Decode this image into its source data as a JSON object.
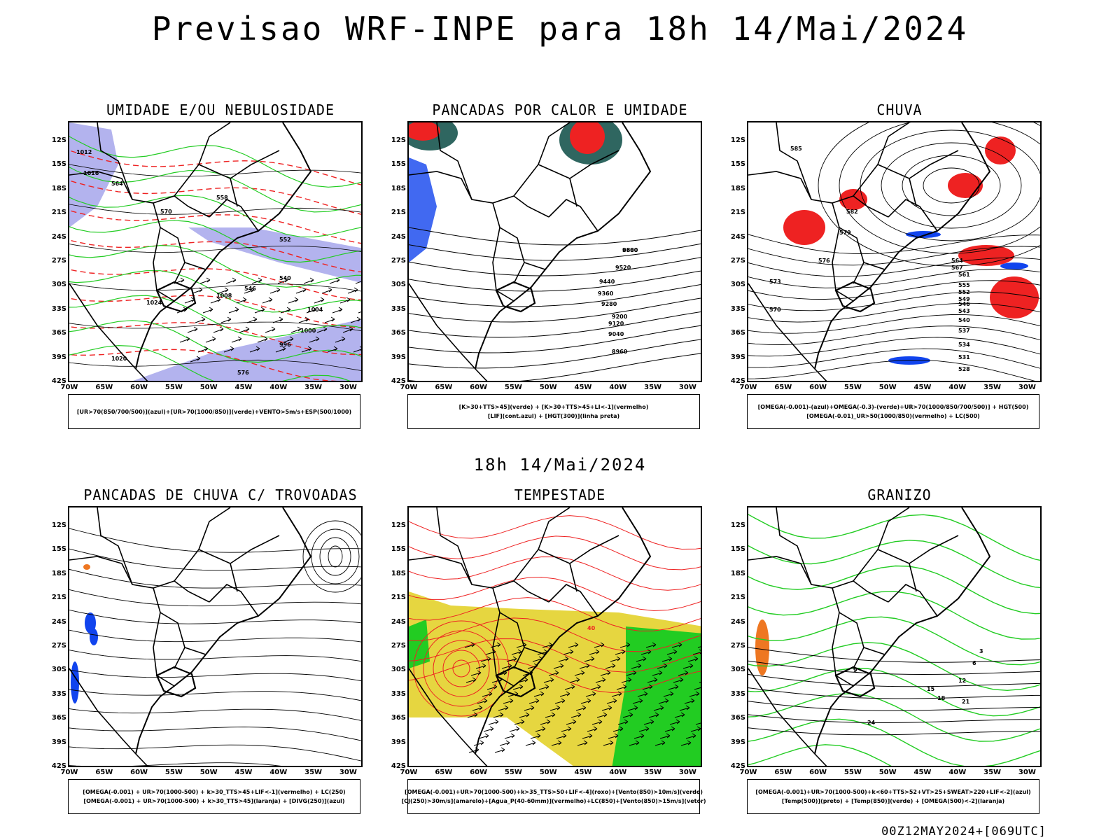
{
  "header": {
    "title": "Previsao WRF-INPE  para 18h 14/Mai/2024",
    "mid_date": "18h 14/Mai/2024",
    "footer": "00Z12MAY2024+[069UTC]"
  },
  "axes": {
    "lat_labels": [
      "12S",
      "15S",
      "18S",
      "21S",
      "24S",
      "27S",
      "30S",
      "33S",
      "36S",
      "39S",
      "42S"
    ],
    "lon_labels": [
      "70W",
      "65W",
      "60W",
      "55W",
      "50W",
      "45W",
      "40W",
      "35W",
      "30W"
    ]
  },
  "colors": {
    "humidity_blue": "#b3b3ee",
    "green": "#22cc22",
    "red": "#ee2222",
    "blue": "#1144ee",
    "yellow": "#e6d640",
    "teal": "#2f6660",
    "orange": "#ee7722"
  },
  "panels": [
    {
      "title": "UMIDADE E/OU NEBULOSIDADE",
      "legend": [
        "[UR>70(850/700/500)](azul)+[UR>70(1000/850)](verde)+VENTO>5m/s+ESP(500/1000)"
      ],
      "labels": [
        "1012",
        "1016",
        "1020",
        "1024",
        "1008",
        "1004",
        "1000",
        "996",
        "576",
        "570",
        "564",
        "558",
        "552",
        "546",
        "540"
      ]
    },
    {
      "title": "PANCADAS POR CALOR E UMIDADE",
      "legend": [
        "[K>30+TTS>45](verde) + [K>30+TTS>45+LI<-1](vermelho)",
        "[LIF](cont.azul) + [HGT(300)](linha preta)"
      ],
      "labels": [
        "9600",
        "9520",
        "9440",
        "9360",
        "9280",
        "9200",
        "9120",
        "9040",
        "8960",
        "8880"
      ]
    },
    {
      "title": "CHUVA",
      "legend": [
        "[OMEGA(-0.001)-(azul)+OMEGA(-0.3)-(verde)+UR>70(1000/850/700/500)] + HGT(500)",
        "[OMEGA(-0.01)_UR>50(1000/850)(vermelho) + LC(500)"
      ],
      "labels": [
        "585",
        "582",
        "579",
        "576",
        "573",
        "570",
        "567",
        "564",
        "561",
        "555",
        "552",
        "549",
        "546",
        "543",
        "540",
        "537",
        "534",
        "531",
        "528"
      ]
    },
    {
      "title": "PANCADAS DE CHUVA C/ TROVOADAS",
      "legend": [
        "[OMEGA(-0.001) + UR>70(1000-500) + k>30_TTS>45+LIF<-1](vermelho) + LC(250)",
        "[OMEGA(-0.001) + UR>70(1000-500) + k>30_TTS>45](laranja) + [DIVG(250)](azul)"
      ],
      "labels": []
    },
    {
      "title": "TEMPESTADE",
      "legend": [
        "[OMEGA(-0.001)+UR>70(1000-500)+k>35_TTS>50+LIF<-4](roxo)+[Vento(850)>10m/s](verde)",
        "[CJ(250)>30m/s](amarelo)+[Agua_P(40-60mm)](vermelho)+LC(850)+[Vento(850)>15m/s](vetor)"
      ],
      "labels": [
        "40"
      ]
    },
    {
      "title": "GRANIZO",
      "legend": [
        "[OMEGA(-0.001)+UR>70(1000-500)+k<60+TTS>52+VT>25+SWEAT>220+LIF<-2](azul)",
        "[Temp(500)](preto) + [Temp(850)](verde) + [OMEGA(500)<-2](laranja)"
      ],
      "labels": [
        "3",
        "6",
        "9",
        "12",
        "15",
        "18",
        "21",
        "24"
      ]
    }
  ]
}
